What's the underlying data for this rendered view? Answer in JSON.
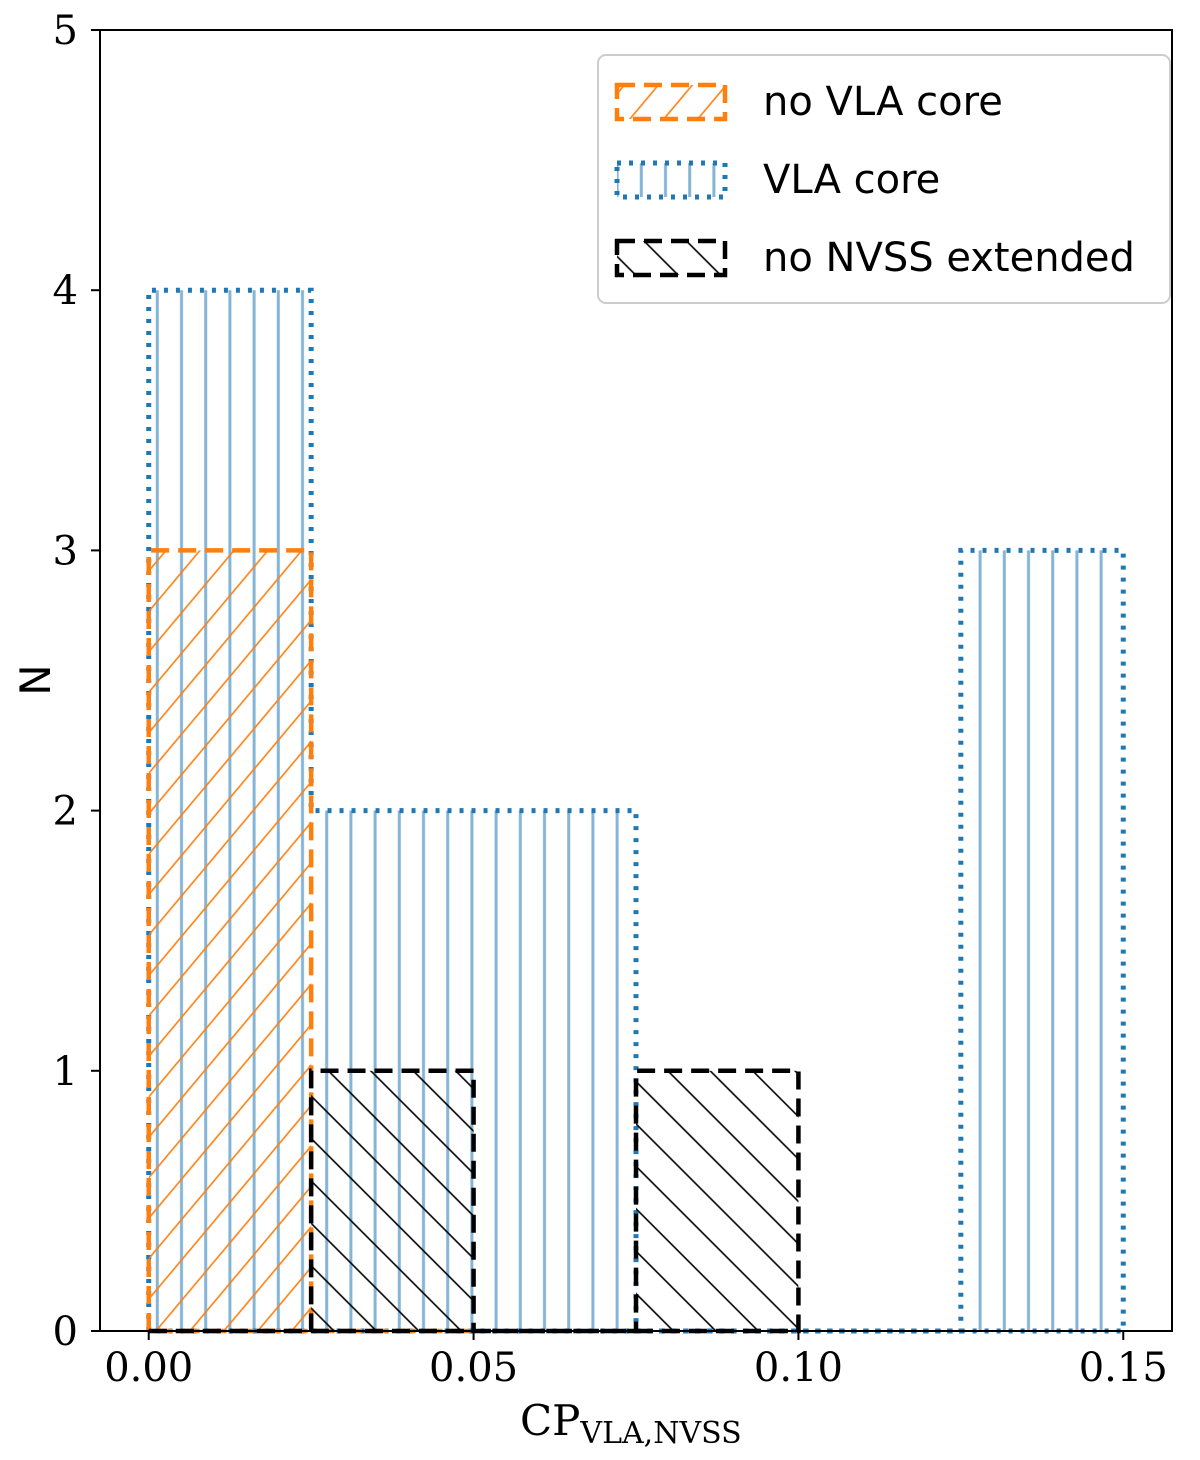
{
  "chart_data": {
    "type": "bar",
    "subtype": "step-histogram",
    "xlabel_main": "CP",
    "xlabel_sub": "VLA,NVSS",
    "ylabel": "N",
    "xlim": [
      -0.0075,
      0.1575
    ],
    "ylim": [
      0,
      5
    ],
    "xticks": [
      0.0,
      0.05,
      0.1,
      0.15
    ],
    "xtick_labels": [
      "0.00",
      "0.05",
      "0.10",
      "0.15"
    ],
    "yticks": [
      0,
      1,
      2,
      3,
      4,
      5
    ],
    "ytick_labels": [
      "0",
      "1",
      "2",
      "3",
      "4",
      "5"
    ],
    "bin_edges": [
      0.0,
      0.025,
      0.05,
      0.075,
      0.1,
      0.125,
      0.15
    ],
    "grid": false,
    "legend_position": "top-right",
    "series": [
      {
        "name": "no VLA core",
        "color": "#ff7f0e",
        "linestyle": "dashed",
        "hatch": "forward-diagonal",
        "values": [
          3,
          0
        ]
      },
      {
        "name": "VLA core",
        "color": "#1f77b4",
        "linestyle": "dotted",
        "hatch": "vertical",
        "values": [
          4,
          2,
          2,
          0,
          0,
          3
        ]
      },
      {
        "name": "no NVSS extended",
        "color": "#000000",
        "linestyle": "dashed",
        "hatch": "back-diagonal",
        "values": [
          0,
          1,
          0,
          1
        ]
      }
    ]
  }
}
